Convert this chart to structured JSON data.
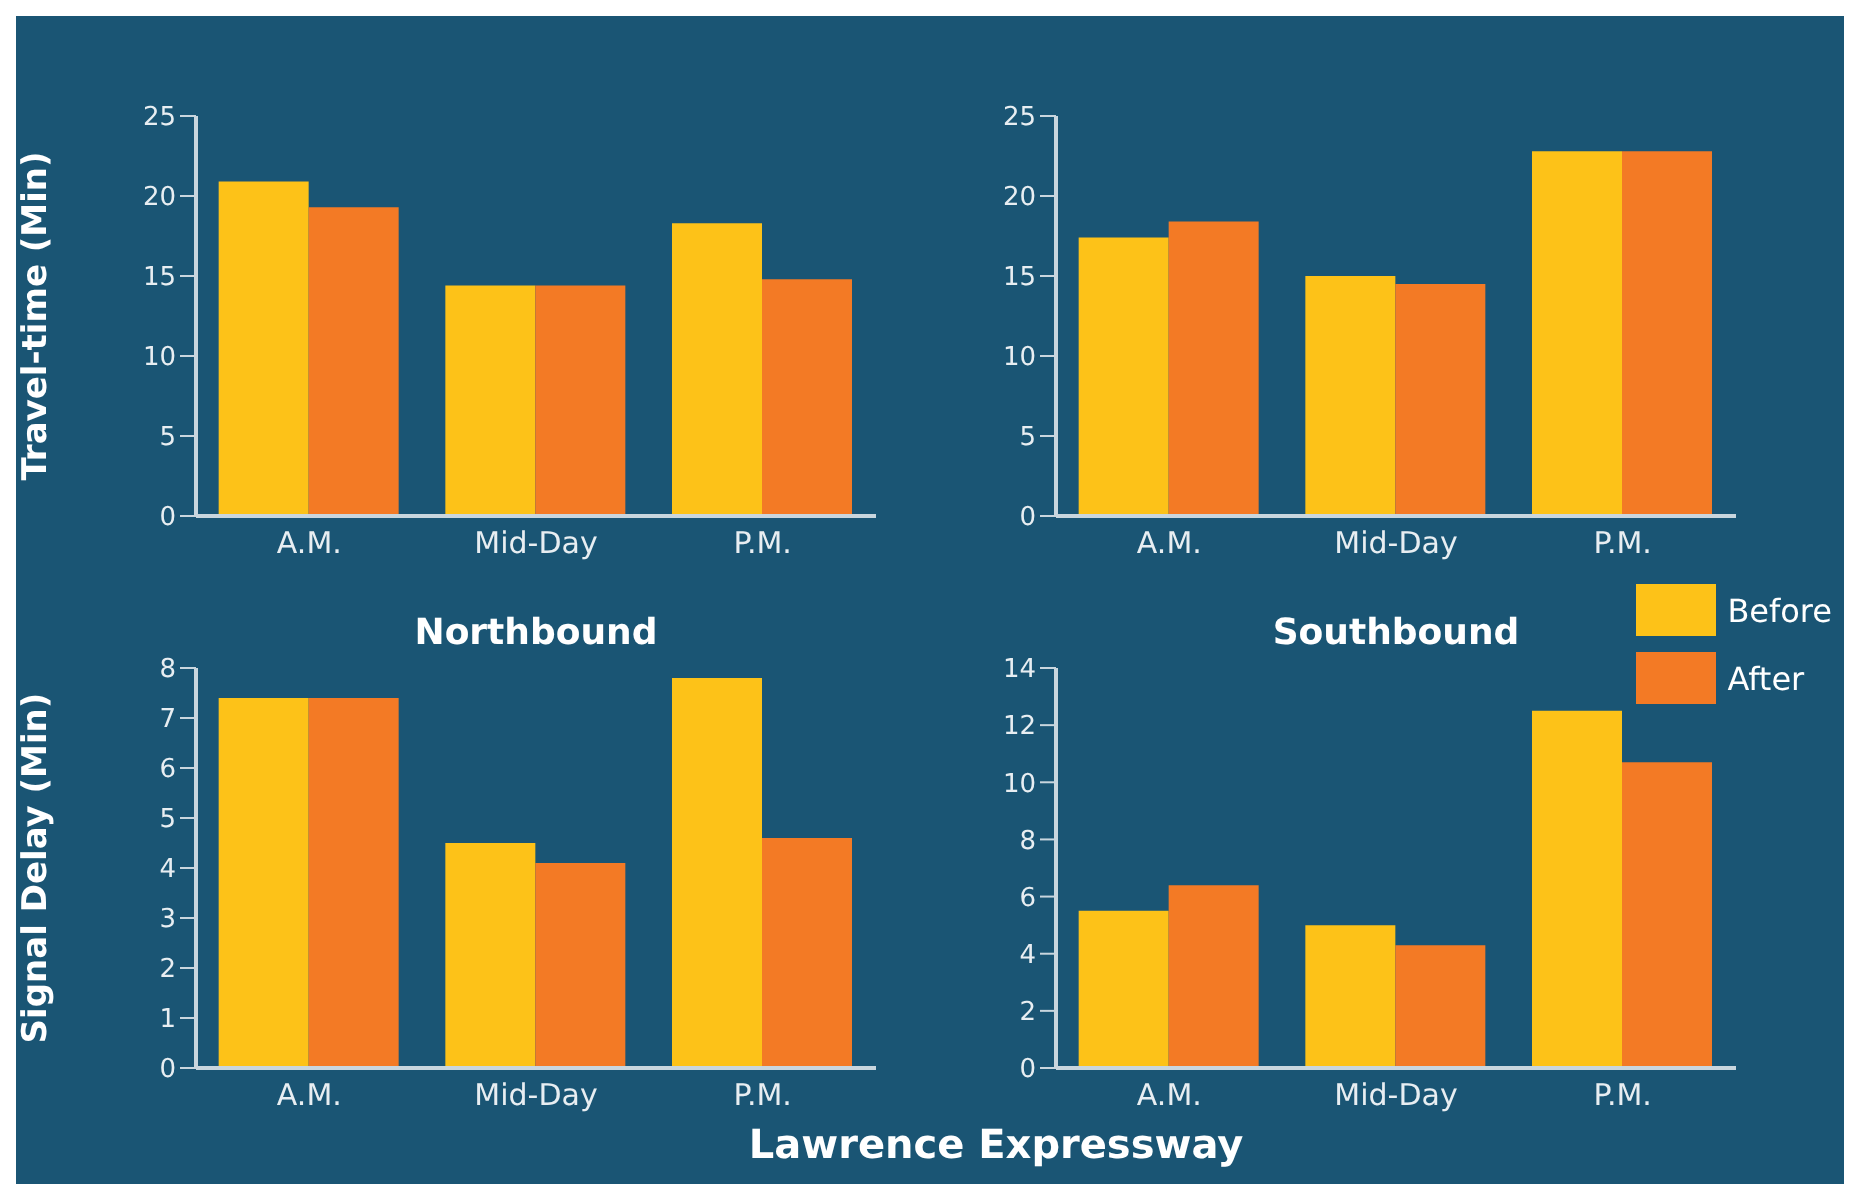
{
  "chart_data": [
    {
      "type": "bar",
      "ylabel": "Travel-time (Min)",
      "xlabel": "Northbound",
      "categories": [
        "A.M.",
        "Mid-Day",
        "P.M."
      ],
      "series": [
        {
          "color": "#fdc218",
          "values": [
            20.9,
            14.4,
            18.3
          ]
        },
        {
          "color": "#f37a25",
          "values": [
            19.3,
            14.4,
            14.8
          ]
        }
      ],
      "ylim": [
        0,
        25
      ],
      "yticks": [
        0,
        5,
        10,
        15,
        20,
        25
      ],
      "grid": false,
      "legend": false
    },
    {
      "type": "bar",
      "xlabel": "Southbound",
      "categories": [
        "A.M.",
        "Mid-Day",
        "P.M."
      ],
      "series": [
        {
          "color": "#fdc218",
          "values": [
            17.4,
            15.0,
            22.8
          ]
        },
        {
          "color": "#f37a25",
          "values": [
            18.4,
            14.5,
            22.8
          ]
        }
      ],
      "ylim": [
        0,
        25
      ],
      "yticks": [
        0,
        5,
        10,
        15,
        20,
        25
      ],
      "grid": false,
      "legend": false
    },
    {
      "type": "bar",
      "ylabel": "Signal Delay (Min)",
      "categories": [
        "A.M.",
        "Mid-Day",
        "P.M."
      ],
      "series": [
        {
          "color": "#fdc218",
          "values": [
            7.4,
            4.5,
            7.8
          ]
        },
        {
          "color": "#f37a25",
          "values": [
            7.4,
            4.1,
            4.6
          ]
        }
      ],
      "ylim": [
        0,
        8
      ],
      "yticks": [
        0,
        1,
        2,
        3,
        4,
        5,
        6,
        7,
        8
      ],
      "grid": false,
      "legend": false,
      "annotations": [
        "Lawrence Expressway"
      ]
    },
    {
      "type": "bar",
      "categories": [
        "A.M.",
        "Mid-Day",
        "P.M."
      ],
      "series": [
        {
          "name": "Before",
          "color": "#fdc218",
          "values": [
            5.5,
            5.0,
            12.5
          ]
        },
        {
          "name": "After",
          "color": "#f37a25",
          "values": [
            6.4,
            4.3,
            10.7
          ]
        }
      ],
      "ylim": [
        0,
        14
      ],
      "yticks": [
        0,
        2,
        4,
        6,
        8,
        10,
        12,
        14
      ],
      "grid": false,
      "legend": "top right"
    }
  ]
}
